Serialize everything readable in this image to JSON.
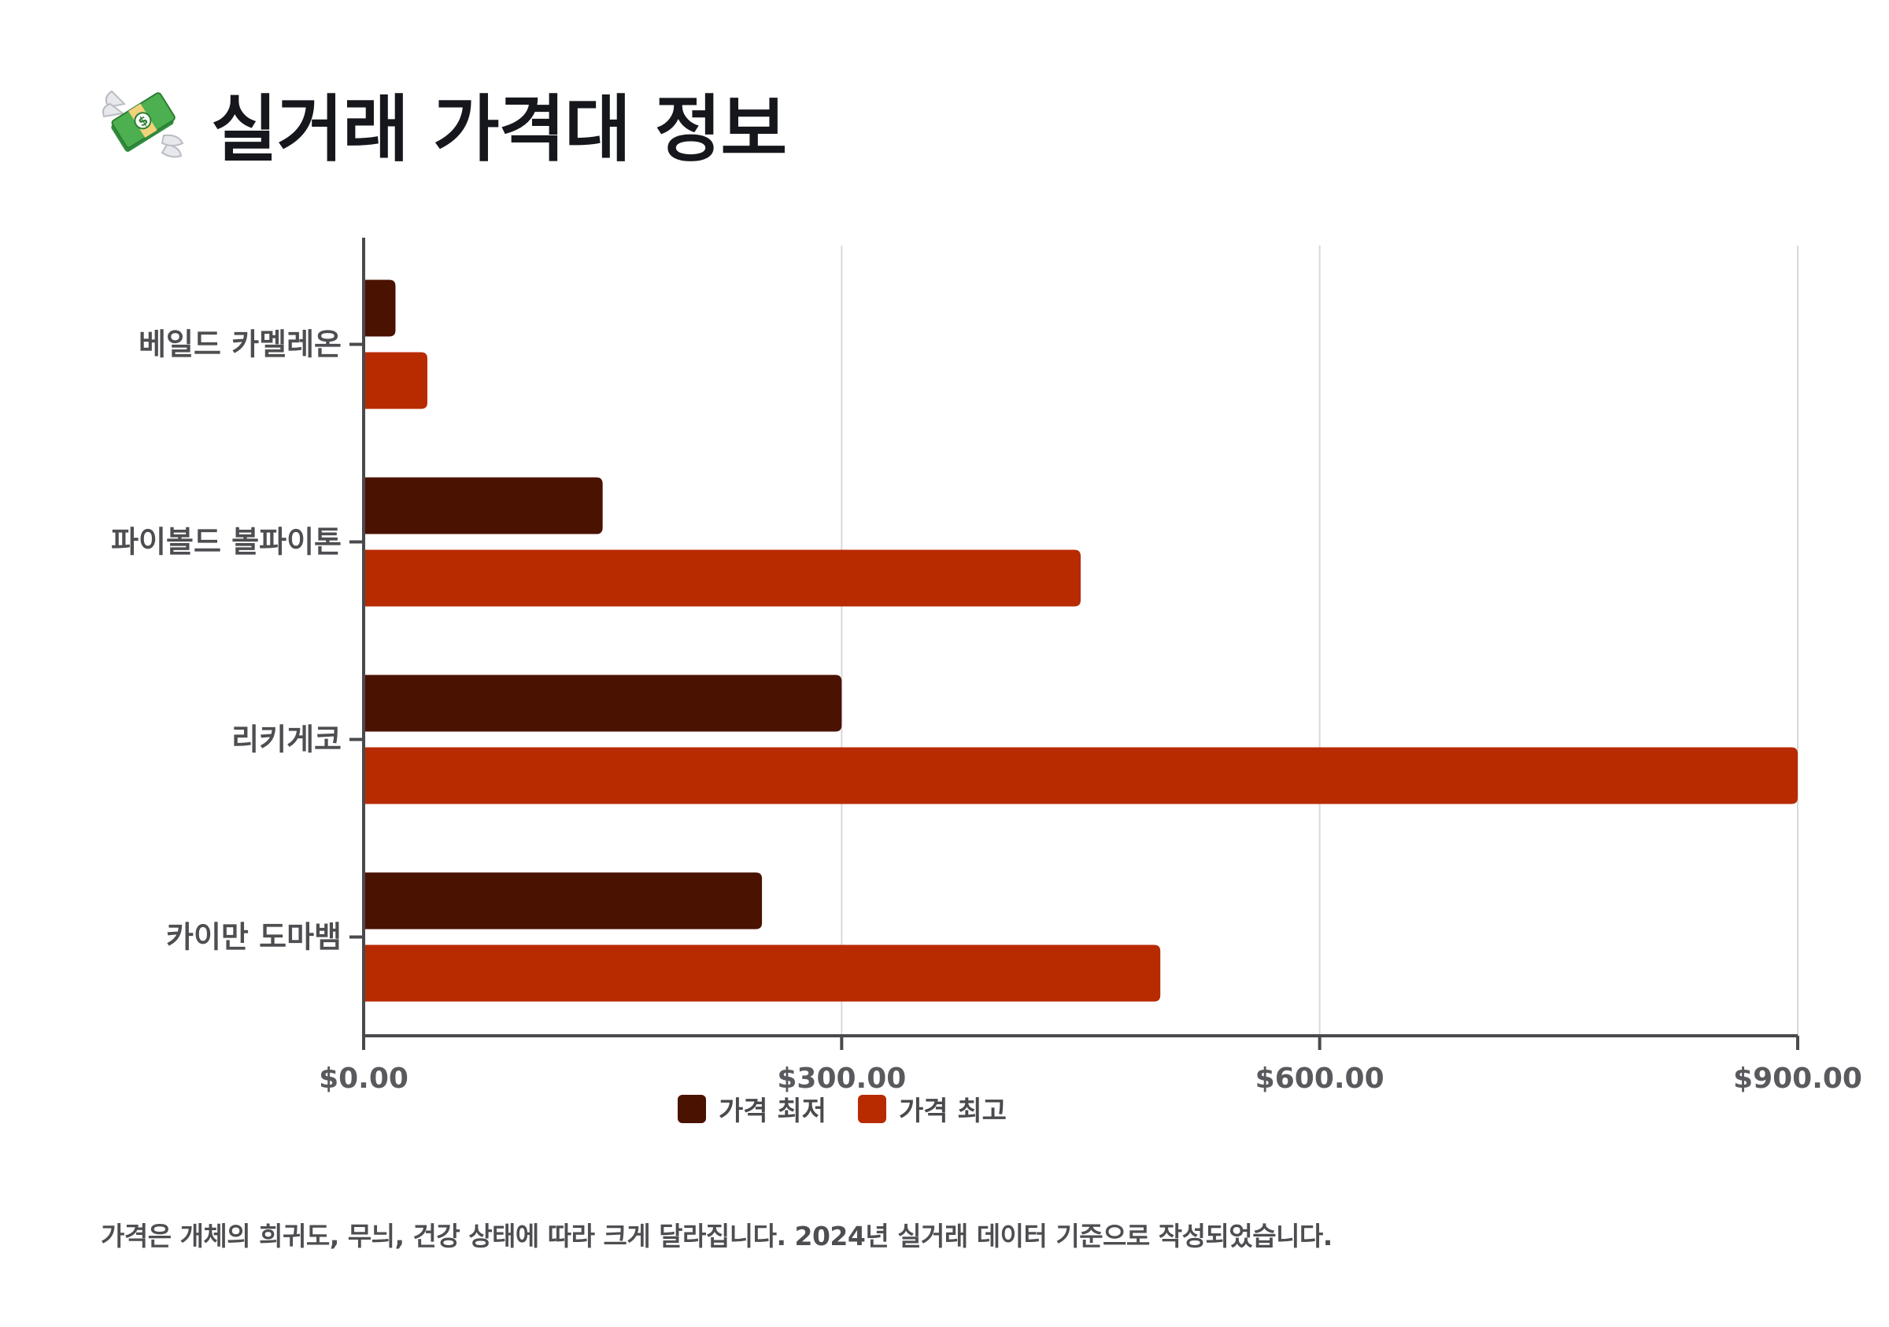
{
  "page": {
    "title": "실거래 가격대 정보",
    "title_icon": "money-with-wings-icon",
    "note": "가격은 개체의 희귀도, 무늬, 건강 상태에 따라 크게 달라집니다. 2024년 실거래 데이터 기준으로 작성되었습니다."
  },
  "colors": {
    "min": "#4a1200",
    "max": "#b82a00",
    "axis": "#4a4a4e",
    "grid": "#d9d9d9"
  },
  "chart_data": {
    "type": "bar",
    "orientation": "horizontal",
    "categories": [
      "베일드 카멜레온",
      "파이볼드 볼파이톤",
      "리키게코",
      "카이만 도마뱀"
    ],
    "series": [
      {
        "name": "가격 최저",
        "values": [
          20,
          150,
          300,
          250
        ]
      },
      {
        "name": "가격 최고",
        "values": [
          40,
          450,
          900,
          500
        ]
      }
    ],
    "xlim": [
      0,
      900
    ],
    "ticks": [
      "$0.00",
      "$300.00",
      "$600.00",
      "$900.00"
    ],
    "tick_values": [
      0,
      300,
      600,
      900
    ],
    "grid": true,
    "legend": "bottom-center"
  }
}
